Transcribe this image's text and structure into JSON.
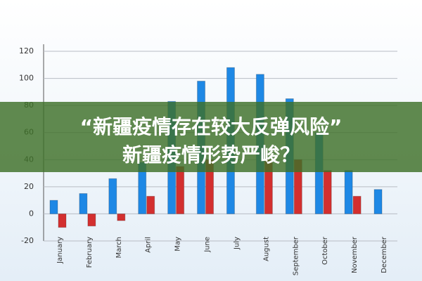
{
  "chart_data": {
    "type": "bar",
    "title": "“新疆疫情存在较大反弹风险”",
    "subtitle": "新疆疫情形势严峻？",
    "categories": [
      "January",
      "February",
      "March",
      "April",
      "May",
      "June",
      "July",
      "August",
      "September",
      "October",
      "November",
      "December"
    ],
    "series": [
      {
        "color": "#1e88e5",
        "values": [
          10,
          15,
          26,
          38,
          83,
          98,
          108,
          103,
          85,
          60,
          32,
          18
        ]
      },
      {
        "color": "#d32f2f",
        "values": [
          -10,
          -9,
          -5,
          13,
          35,
          40,
          null,
          40,
          40,
          32,
          13,
          null
        ]
      }
    ],
    "ylim": [
      -20,
      120
    ],
    "yticks": [
      -20,
      0,
      20,
      40,
      60,
      80,
      100,
      120
    ],
    "grid": true
  }
}
